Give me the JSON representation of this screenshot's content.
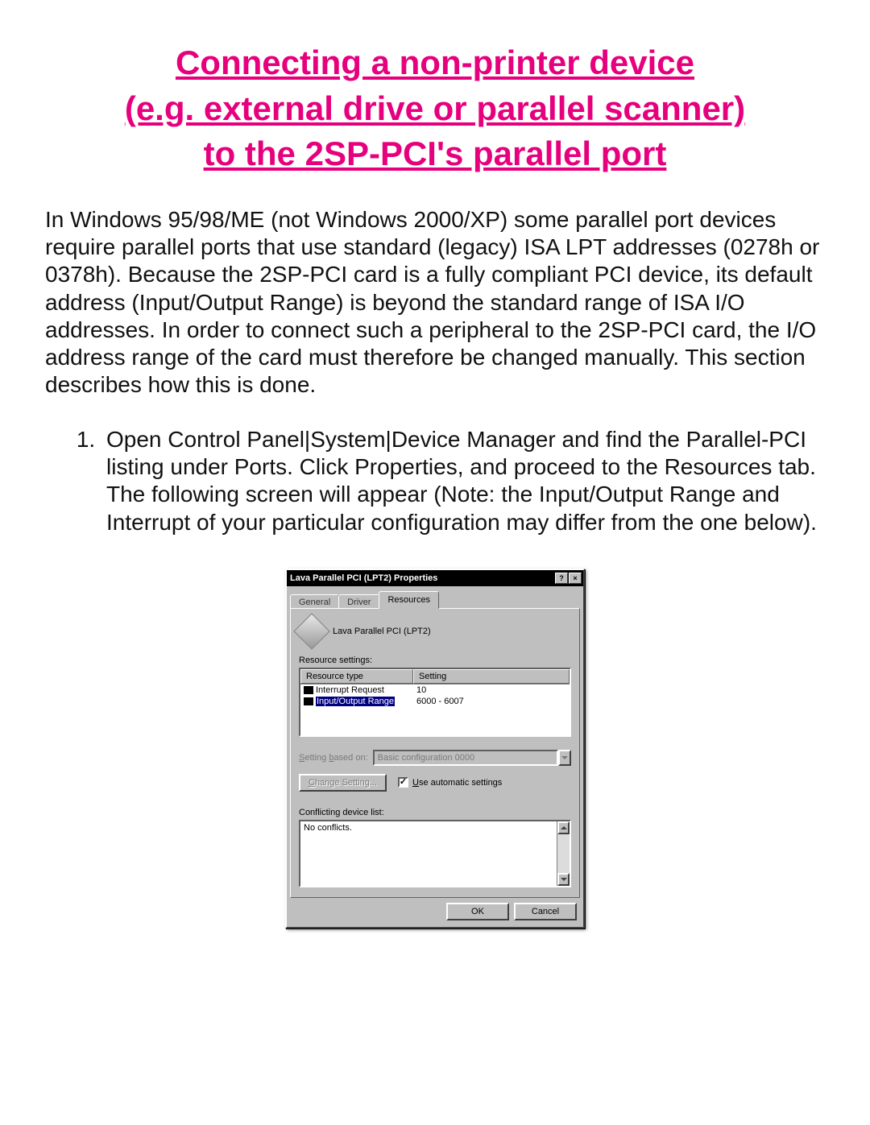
{
  "title_line1": "Connecting a non-printer device",
  "title_line2": "(e.g. external drive or parallel scanner)",
  "title_line3": "to the 2SP-PCI's parallel port",
  "title_color": "#e6007e",
  "intro": "In Windows 95/98/ME (not Windows 2000/XP) some parallel port devices require parallel ports that use standard (legacy) ISA LPT addresses (0278h or 0378h). Because the 2SP-PCI card is a fully compliant PCI device, its default address (Input/Output Range) is beyond the standard range of ISA I/O addresses. In order to connect such a peripheral to the 2SP-PCI card, the I/O address range of the card must therefore be changed manually. This section describes how this is done.",
  "step1": "Open Control Panel|System|Device Manager and find the Parallel-PCI listing under Ports. Click Properties, and proceed to the Resources tab. The following screen will appear (Note: the Input/Output Range and Interrupt of your particular configuration may differ from the one below).",
  "dialog": {
    "title": "Lava Parallel PCI (LPT2) Properties",
    "help_btn": "?",
    "close_btn": "×",
    "tabs": {
      "general": "General",
      "driver": "Driver",
      "resources": "Resources"
    },
    "device_name": "Lava Parallel PCI (LPT2)",
    "resource_settings_label": "Resource settings:",
    "columns": {
      "type": "Resource type",
      "setting": "Setting"
    },
    "rows": [
      {
        "type": "Interrupt Request",
        "setting": "10"
      },
      {
        "type": "Input/Output Range",
        "setting": "6000 - 6007"
      }
    ],
    "setting_based_on_label": "Setting based on:",
    "setting_based_on_value": "Basic configuration 0000",
    "change_setting_btn": "Change Setting...",
    "use_auto_label": "Use automatic settings",
    "use_auto_checked": "✓",
    "conflict_label": "Conflicting device list:",
    "conflict_text": "No conflicts.",
    "ok": "OK",
    "cancel": "Cancel",
    "colors": {
      "face": "#bfbfbf",
      "titlebar_bg": "#000000",
      "titlebar_fg": "#ffffff",
      "selection_bg": "#000080",
      "disabled_fg": "#7a7a7a",
      "window_bg": "#ffffff"
    }
  }
}
